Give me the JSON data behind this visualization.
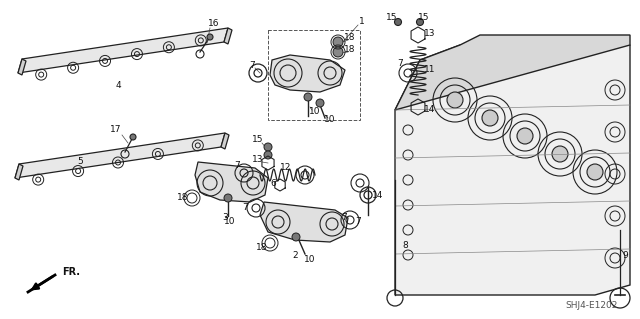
{
  "bg_color": "#ffffff",
  "fig_width": 6.4,
  "fig_height": 3.19,
  "dpi": 100,
  "watermark": "SHJ4-E1202",
  "fr_label": "FR.",
  "label_fontsize": 6.5,
  "label_color": "#111111",
  "line_color": "#222222"
}
